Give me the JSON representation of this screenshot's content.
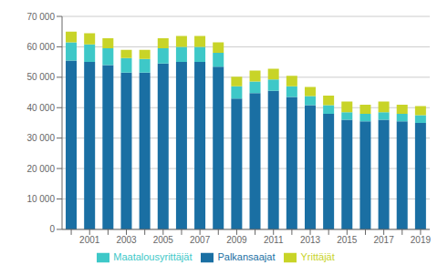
{
  "chart_data": {
    "type": "bar",
    "stacked": true,
    "categories": [
      null,
      "2001",
      null,
      "2003",
      null,
      "2005",
      null,
      "2007",
      null,
      "2009",
      null,
      "2011",
      null,
      "2013",
      null,
      "2015",
      null,
      "2017",
      null,
      "2019"
    ],
    "series": [
      {
        "name": "Palkansaajat",
        "color": "#1a6fa3",
        "values": [
          55500,
          55000,
          54000,
          51500,
          51500,
          54500,
          55000,
          55000,
          53500,
          43000,
          44800,
          45500,
          43500,
          40800,
          38000,
          36000,
          35500,
          36000,
          35500,
          35000
        ]
      },
      {
        "name": "Maatalousyrittäjät",
        "color": "#3ec8c8",
        "values": [
          6000,
          5800,
          5500,
          4800,
          4500,
          5000,
          5000,
          5000,
          4500,
          4000,
          3800,
          3800,
          3500,
          3000,
          2800,
          2500,
          2500,
          2500,
          2500,
          2500
        ]
      },
      {
        "name": "Yrittäjät",
        "color": "#c8d428",
        "values": [
          3500,
          3700,
          3300,
          2700,
          3000,
          3300,
          3600,
          3600,
          3500,
          3200,
          3600,
          3500,
          3500,
          3000,
          3200,
          3500,
          3000,
          3500,
          3000,
          3000
        ]
      }
    ],
    "ylim": [
      0,
      70000
    ],
    "yticks": [
      0,
      {
        "value": 10000,
        "label": "10 000"
      },
      {
        "value": 20000,
        "label": "20 000"
      },
      {
        "value": 30000,
        "label": "30 000"
      },
      {
        "value": 40000,
        "label": "40 000"
      },
      {
        "value": 50000,
        "label": "50 000"
      },
      {
        "value": 60000,
        "label": "60 000"
      },
      {
        "value": 70000,
        "label": "70 000"
      }
    ],
    "grid": true,
    "legend": "bottom"
  }
}
